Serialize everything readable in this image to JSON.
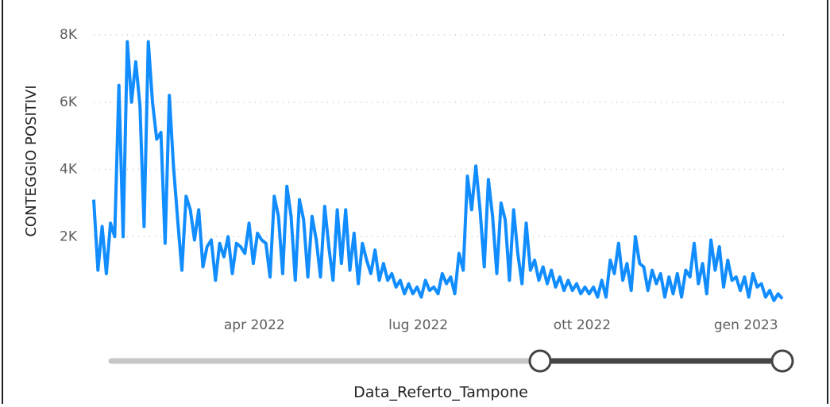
{
  "chart_data": {
    "type": "line",
    "y_label": "CONTEGGIO POSITIVI",
    "x_label": "Data_Referto_Tampone",
    "xlim": [
      "2022-01",
      "2023-02"
    ],
    "xticks": [
      {
        "value": "2022-04",
        "label": "apr 2022"
      },
      {
        "value": "2022-07",
        "label": "lug 2022"
      },
      {
        "value": "2022-10",
        "label": "ott 2022"
      },
      {
        "value": "2023-01",
        "label": "gen 2023"
      }
    ],
    "ylim": [
      0,
      8000
    ],
    "yticks": [
      {
        "value": 2000,
        "label": "2K"
      },
      {
        "value": 4000,
        "label": "4K"
      },
      {
        "value": 6000,
        "label": "6K"
      },
      {
        "value": 8000,
        "label": "8K"
      }
    ],
    "grid": true,
    "series": [
      {
        "name": "CONTEGGIO POSITIVI",
        "color": "#118DFF",
        "values": [
          3100,
          1000,
          2300,
          900,
          2400,
          2000,
          6500,
          2000,
          7800,
          6000,
          7200,
          5900,
          2300,
          7800,
          6000,
          4900,
          5100,
          1800,
          6200,
          4100,
          2500,
          1000,
          3200,
          2800,
          1900,
          2800,
          1100,
          1700,
          1900,
          700,
          1800,
          1400,
          2000,
          900,
          1800,
          1700,
          1500,
          2400,
          1200,
          2100,
          1900,
          1800,
          800,
          3200,
          2600,
          900,
          3500,
          2600,
          700,
          3100,
          2500,
          800,
          2600,
          1900,
          800,
          2900,
          1700,
          700,
          2800,
          1200,
          2800,
          1000,
          2100,
          600,
          1800,
          1300,
          900,
          1600,
          700,
          1200,
          700,
          900,
          500,
          700,
          300,
          600,
          300,
          500,
          200,
          700,
          400,
          500,
          300,
          900,
          600,
          800,
          300,
          1500,
          1000,
          3800,
          2800,
          4100,
          2800,
          1100,
          3700,
          2600,
          900,
          3000,
          2500,
          700,
          2800,
          1500,
          600,
          2400,
          1000,
          1300,
          700,
          1100,
          600,
          1000,
          500,
          800,
          400,
          700,
          400,
          600,
          300,
          500,
          300,
          500,
          200,
          700,
          200,
          1300,
          900,
          1800,
          700,
          1200,
          400,
          2000,
          1200,
          1100,
          400,
          1000,
          600,
          900,
          200,
          800,
          300,
          900,
          200,
          1000,
          800,
          1800,
          600,
          1200,
          300,
          1900,
          1000,
          1700,
          500,
          1300,
          700,
          800,
          400,
          800,
          200,
          900,
          500,
          600,
          200,
          400,
          100,
          300,
          150
        ]
      }
    ]
  }
}
